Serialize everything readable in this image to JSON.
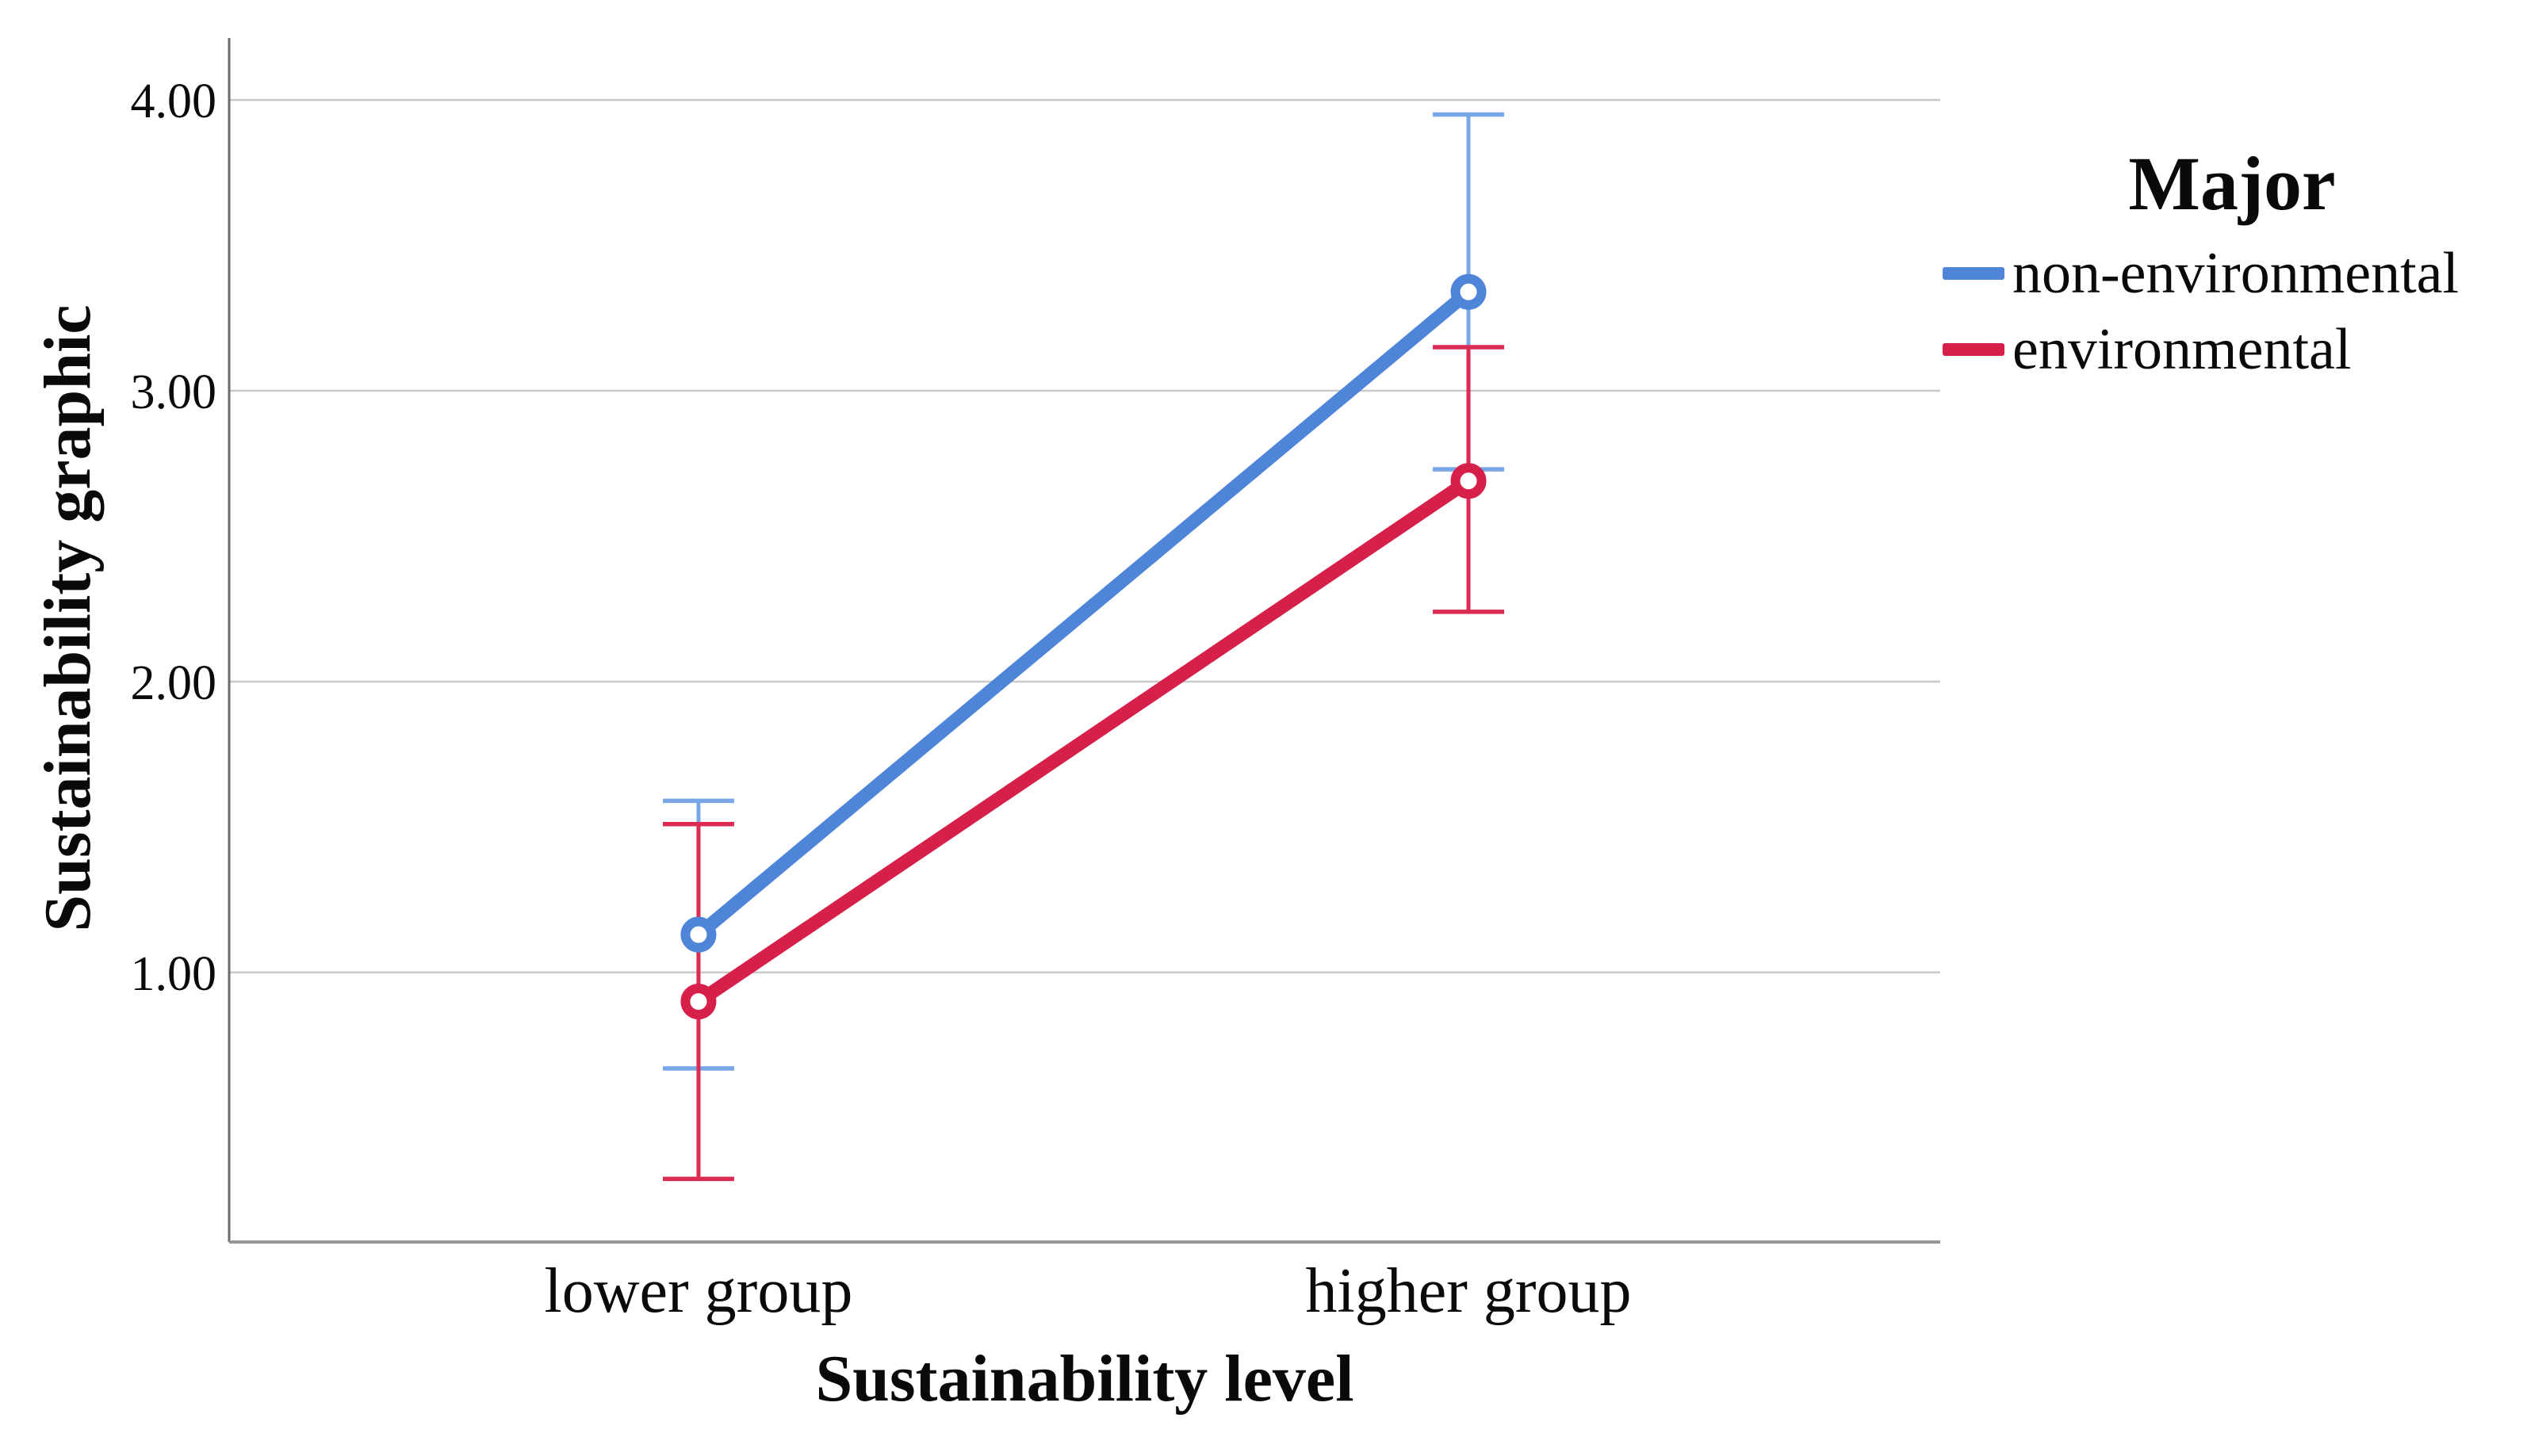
{
  "chart_data": {
    "type": "line",
    "title": "",
    "xlabel": "Sustainability level",
    "ylabel": "Sustainability graphic",
    "categories": [
      "lower group",
      "higher group"
    ],
    "y_tick_labels": [
      "4.00",
      "3.00",
      "2.00",
      "1.00"
    ],
    "y_tick_values": [
      4,
      3,
      2,
      1
    ],
    "ylim": [
      0.073,
      4.213
    ],
    "grid": true,
    "marker": "open-circle",
    "error_bars": true,
    "legend": {
      "title": "Major",
      "position": "right"
    },
    "series": [
      {
        "name": "non-environmental",
        "color": "#4F85D8",
        "error_bar_color": "#78A7E8",
        "values": [
          1.13,
          3.34
        ],
        "error_low": [
          0.67,
          2.73
        ],
        "error_high": [
          1.59,
          3.95
        ]
      },
      {
        "name": "environmental",
        "color": "#D6204A",
        "error_bar_color": "#DB2B53",
        "values": [
          0.9,
          2.69
        ],
        "error_low": [
          0.29,
          2.24
        ],
        "error_high": [
          1.51,
          3.15
        ]
      }
    ],
    "axis_colors": {
      "y_axis": "#6B6B6B",
      "x_axis": "#969696",
      "gridline": "#C9C9C9",
      "text": "#0a0a0a"
    }
  }
}
